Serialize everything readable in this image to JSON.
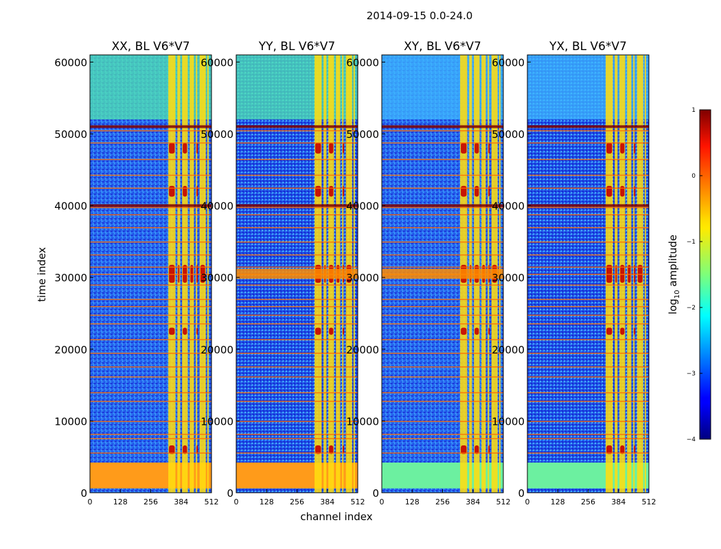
{
  "figure": {
    "suptitle": "2014-09-15 0.0-24.0"
  },
  "chart_data": [
    {
      "type": "heatmap",
      "title": "XX, BL V6*V7",
      "xlabel": "channel index",
      "ylabel": "time index",
      "xlim": [
        0,
        512
      ],
      "ylim": [
        0,
        61000
      ],
      "xticks": [
        "0",
        "128",
        "256",
        "384",
        "512"
      ],
      "yticks": [
        "0",
        "10000",
        "20000",
        "30000",
        "40000",
        "50000",
        "60000"
      ]
    },
    {
      "type": "heatmap",
      "title": "YY, BL V6*V7",
      "xlabel": "channel index",
      "xlim": [
        0,
        512
      ],
      "ylim": [
        0,
        61000
      ],
      "xticks": [
        "0",
        "128",
        "256",
        "384",
        "512"
      ],
      "yticks": [
        "0",
        "10000",
        "20000",
        "30000",
        "40000",
        "50000",
        "60000"
      ]
    },
    {
      "type": "heatmap",
      "title": "XY, BL V6*V7",
      "xlabel": "channel index",
      "xlim": [
        0,
        512
      ],
      "ylim": [
        0,
        61000
      ],
      "xticks": [
        "0",
        "128",
        "256",
        "384",
        "512"
      ],
      "yticks": [
        "0",
        "10000",
        "20000",
        "30000",
        "40000",
        "50000",
        "60000"
      ]
    },
    {
      "type": "heatmap",
      "title": "YX, BL V6*V7",
      "xlabel": "channel index",
      "xlim": [
        0,
        512
      ],
      "ylim": [
        0,
        61000
      ],
      "xticks": [
        "0",
        "128",
        "256",
        "384",
        "512"
      ],
      "yticks": [
        "0",
        "10000",
        "20000",
        "30000",
        "40000",
        "50000",
        "60000"
      ]
    }
  ],
  "colorbar": {
    "label_prefix": "log",
    "label_sub": "10",
    "label_suffix": " amplitude",
    "range": [
      -4,
      1
    ],
    "ticks": [
      "1",
      "0",
      "−1",
      "−2",
      "−3",
      "−4"
    ]
  },
  "shared": {
    "xlabel": "channel index",
    "ylabel": "time index"
  }
}
